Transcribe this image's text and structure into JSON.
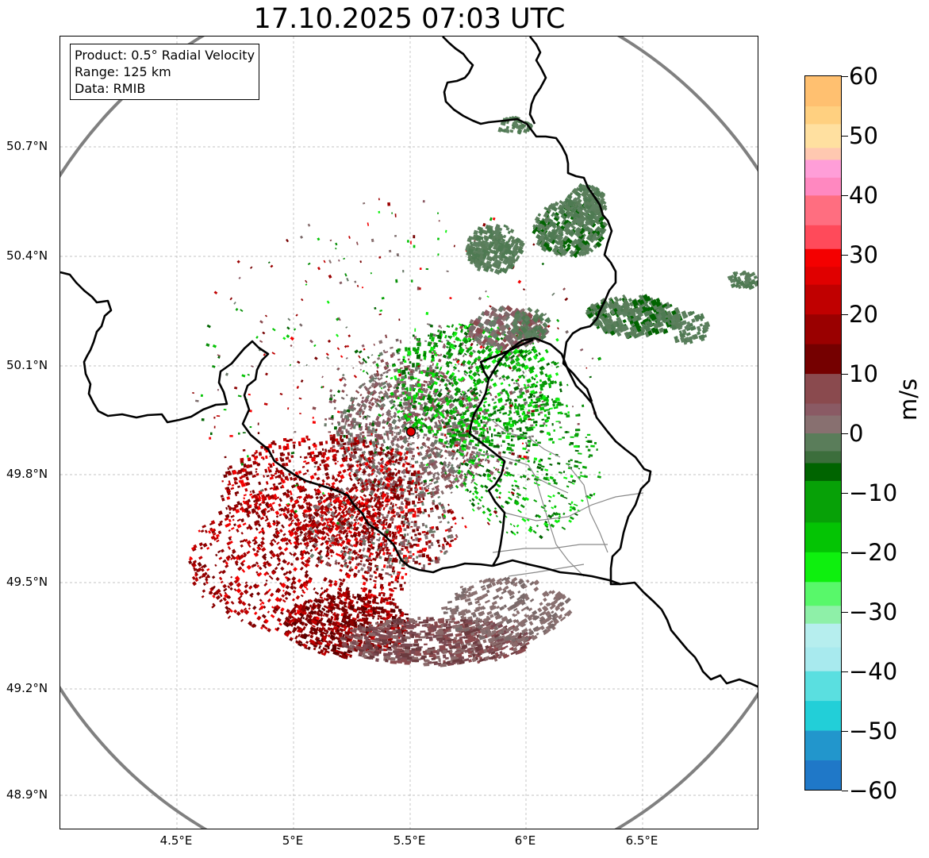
{
  "title": "17.10.2025 07:03 UTC",
  "info_box": {
    "product": "Product: 0.5° Radial Velocity",
    "range": "Range: 125 km",
    "data": "Data: RMIB"
  },
  "axes": {
    "x_ticks": [
      "4.5°E",
      "5°E",
      "5.5°E",
      "6°E",
      "6.5°E"
    ],
    "y_ticks": [
      "50.7°N",
      "50.4°N",
      "50.1°N",
      "49.8°N",
      "49.5°N",
      "49.2°N",
      "48.9°N"
    ]
  },
  "map": {
    "lon_range": [
      4.0,
      7.0
    ],
    "lat_range": [
      48.8,
      50.98
    ],
    "radar_site": {
      "lon": 5.505,
      "lat": 49.915
    },
    "range_km": 125
  },
  "colorbar": {
    "unit": "m/s",
    "ticks": [
      "60",
      "50",
      "40",
      "30",
      "20",
      "10",
      "0",
      "−10",
      "−20",
      "−30",
      "−40",
      "−50",
      "−60"
    ],
    "min": -60,
    "max": 60,
    "colors": {
      "v_neg60": "#1f78c8",
      "v_neg50": "#22cfd8",
      "v_neg40": "#a8eaee",
      "v_neg32": "#8ef0a8",
      "v_neg25": "#0ef00e",
      "v_neg15": "#07a107",
      "v_neg8": "#006400",
      "v_neg3": "#5a7d5a",
      "v_0": "#887070",
      "v_5": "#8a4a4e",
      "v_10": "#750000",
      "v_20": "#c00000",
      "v_28": "#f40000",
      "v_35": "#ff6e80",
      "v_43": "#ff9ed8",
      "v_48": "#ffe0a0",
      "v_55": "#ffc070",
      "v_60": "#ff9a50"
    }
  }
}
